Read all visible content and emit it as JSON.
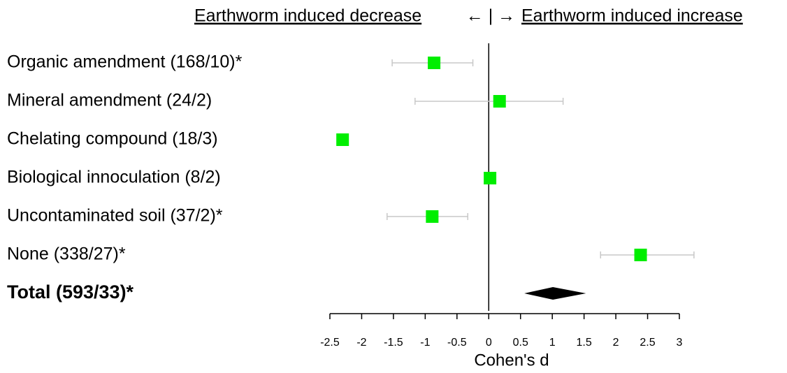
{
  "chart_data": {
    "type": "forest",
    "header": {
      "left": "Earthworm induced decrease",
      "middle": "← | →",
      "right": "Earthworm induced increase"
    },
    "categories": [
      "Organic amendment (168/10)*",
      "Mineral amendment (24/2)",
      "Chelating compound (18/3)",
      "Biological innoculation (8/2)",
      "Uncontaminated soil (37/2)*",
      "None (338/27)*"
    ],
    "values": [
      -0.86,
      0.17,
      -2.3,
      0.02,
      -0.89,
      2.39
    ],
    "lower": [
      -1.52,
      -1.16,
      null,
      null,
      -1.6,
      1.76
    ],
    "upper": [
      -0.25,
      1.17,
      null,
      null,
      -0.33,
      3.23
    ],
    "color": "#00ee00",
    "error_color": "#c8c8c8",
    "total": {
      "label": "Total (593/33)*",
      "value": 1.01,
      "lower": 0.56,
      "upper": 1.53,
      "color": "#000000"
    },
    "reference_line": 0,
    "x_label": "Cohen's d",
    "xlim": [
      -2.5,
      3
    ],
    "xticks": [
      -2.5,
      -2,
      -1.5,
      -1,
      -0.5,
      0,
      0.5,
      1,
      1.5,
      2,
      2.5,
      3
    ]
  }
}
